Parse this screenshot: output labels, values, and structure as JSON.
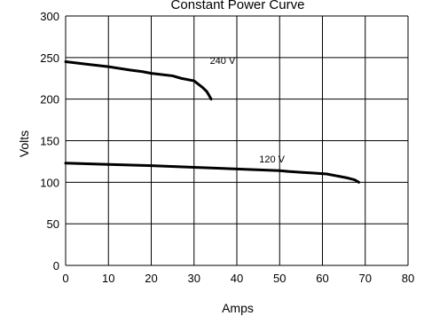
{
  "chart_data": {
    "type": "line",
    "title": "Constant Power Curve",
    "xlabel": "Amps",
    "ylabel": "Volts",
    "xlim": [
      0,
      80
    ],
    "ylim": [
      0,
      300
    ],
    "x_ticks": [
      "0",
      "10",
      "20",
      "30",
      "40",
      "50",
      "60",
      "70",
      "80"
    ],
    "y_ticks": [
      "0",
      "50",
      "100",
      "150",
      "200",
      "250",
      "300"
    ],
    "grid": true,
    "legend": "none",
    "series": [
      {
        "name": "240 V",
        "x": [
          0,
          5,
          10,
          15,
          18,
          20,
          25,
          27,
          30,
          31,
          32,
          33,
          34
        ],
        "y": [
          245,
          242,
          239,
          235,
          233,
          231,
          228,
          225,
          222,
          218,
          214,
          209,
          200
        ]
      },
      {
        "name": "120 V",
        "x": [
          0,
          10,
          20,
          30,
          40,
          50,
          52,
          55,
          58,
          61,
          64,
          66,
          67.5,
          68.5
        ],
        "y": [
          123,
          121.5,
          120,
          118,
          116,
          114,
          113,
          112,
          111,
          110,
          107,
          105,
          103,
          100
        ]
      }
    ]
  },
  "colors": {
    "line": "#000000",
    "grid": "#000000",
    "background": "#ffffff"
  }
}
